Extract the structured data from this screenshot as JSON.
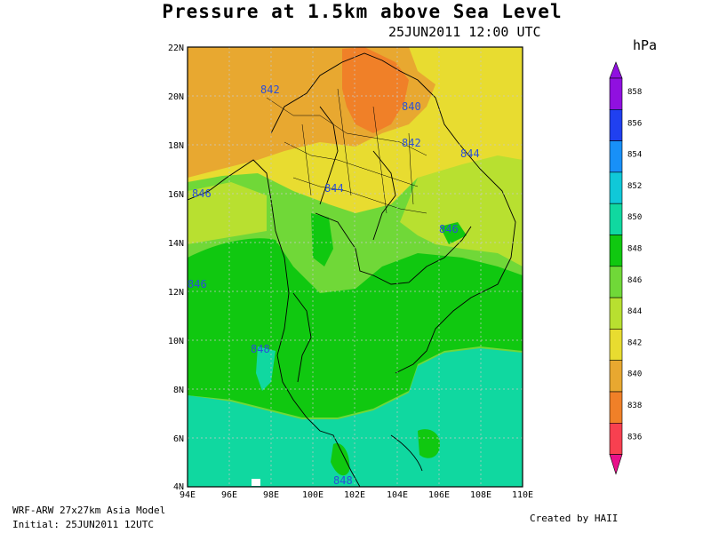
{
  "title": "Pressure at 1.5km above Sea Level",
  "subtitle": "25JUN2011 12:00 UTC",
  "footer": {
    "model": "WRF-ARW 27x27km Asia Model",
    "initial": "Initial: 25JUN2011 12UTC",
    "credit": "Created by HAII"
  },
  "legend": {
    "unit": "hPa",
    "levels": [
      {
        "label": "858",
        "color": "#9010e0"
      },
      {
        "label": "856",
        "color": "#2040f0"
      },
      {
        "label": "854",
        "color": "#1890f8"
      },
      {
        "label": "852",
        "color": "#10c8d8"
      },
      {
        "label": "850",
        "color": "#10d8a0"
      },
      {
        "label": "848",
        "color": "#10c810"
      },
      {
        "label": "846",
        "color": "#70d838"
      },
      {
        "label": "844",
        "color": "#b8e030"
      },
      {
        "label": "842",
        "color": "#e8dc30"
      },
      {
        "label": "840",
        "color": "#e8a830"
      },
      {
        "label": "838",
        "color": "#f08028"
      },
      {
        "label": "836",
        "color": "#f84050"
      }
    ]
  },
  "map": {
    "lon_ticks": [
      "94E",
      "96E",
      "98E",
      "100E",
      "102E",
      "104E",
      "106E",
      "108E",
      "110E"
    ],
    "lat_ticks": [
      "22N",
      "20N",
      "18N",
      "16N",
      "14N",
      "12N",
      "10N",
      "8N",
      "6N",
      "4N"
    ],
    "contour_labels": [
      "842",
      "840",
      "842",
      "844",
      "844",
      "846",
      "846",
      "846",
      "848",
      "848"
    ]
  }
}
